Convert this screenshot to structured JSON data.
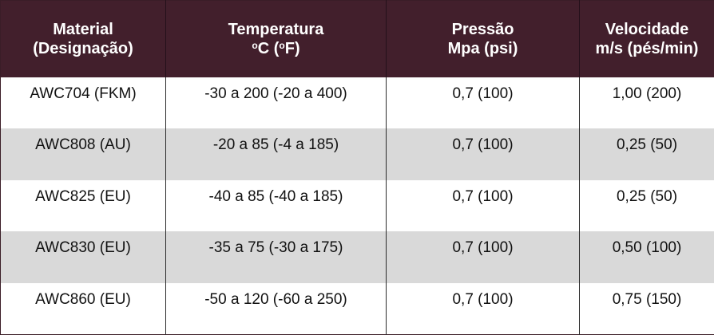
{
  "table": {
    "headers": [
      {
        "line1": "Material",
        "line2": "(Designação)"
      },
      {
        "line1": "Temperatura",
        "line2_pre": "",
        "deg1": "o",
        "line2_mid": "C (",
        "deg2": "o",
        "line2_post": "F)"
      },
      {
        "line1": "Pressão",
        "line2": "Mpa (psi)"
      },
      {
        "line1": "Velocidade",
        "line2": "m/s (pés/min)"
      }
    ],
    "rows": [
      {
        "material": "AWC704 (FKM)",
        "temperature": "-30 a 200 (-20 a 400)",
        "pressure": "0,7 (100)",
        "velocity": "1,00 (200)"
      },
      {
        "material": "AWC808 (AU)",
        "temperature": "-20 a 85 (-4 a 185)",
        "pressure": "0,7 (100)",
        "velocity": "0,25 (50)"
      },
      {
        "material": "AWC825 (EU)",
        "temperature": "-40 a 85 (-40 a 185)",
        "pressure": "0,7 (100)",
        "velocity": "0,25 (50)"
      },
      {
        "material": "AWC830 (EU)",
        "temperature": "-35 a 75 (-30 a 175)",
        "pressure": "0,7 (100)",
        "velocity": "0,50 (100)"
      },
      {
        "material": "AWC860 (EU)",
        "temperature": "-50 a 120 (-60 a 250)",
        "pressure": "0,7 (100)",
        "velocity": "0,75 (150)"
      }
    ]
  },
  "colors": {
    "header_bg": "#421f2c",
    "header_text": "#ffffff",
    "row_shade": "#d9d9d9"
  }
}
